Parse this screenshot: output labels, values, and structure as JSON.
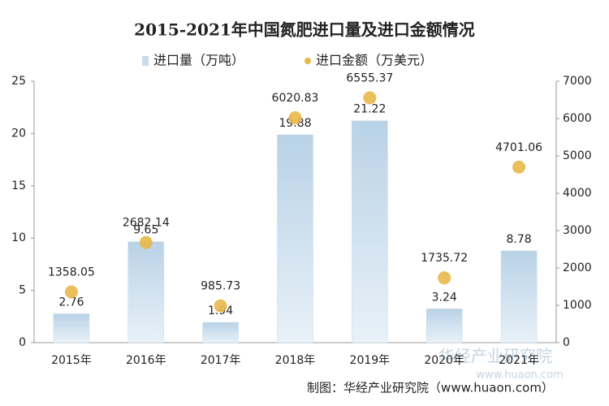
{
  "chart_data": {
    "type": "bar",
    "title": "2015-2021年中国氮肥进口量及进口金额情况",
    "categories": [
      "2015年",
      "2016年",
      "2017年",
      "2018年",
      "2019年",
      "2020年",
      "2021年"
    ],
    "series": [
      {
        "name": "进口量（万吨）",
        "color": "#c9dcec",
        "values": [
          2.76,
          9.65,
          1.94,
          19.88,
          21.22,
          3.24,
          8.78
        ]
      },
      {
        "name": "进口金额（万美元）",
        "type": "scatter",
        "axis": "y2",
        "color": "#e8b84a",
        "values": [
          1358.05,
          2682.14,
          985.73,
          6020.83,
          6555.37,
          1735.72,
          4701.06
        ]
      }
    ],
    "ylim": [
      0,
      25
    ],
    "yticks": [
      0,
      5,
      10,
      15,
      20,
      25
    ],
    "y2lim": [
      0,
      7000
    ],
    "y2ticks": [
      0,
      1000,
      2000,
      3000,
      4000,
      5000,
      6000,
      7000
    ],
    "grid": false,
    "source": "制图：华经产业研究院（www.huaon.com）",
    "watermark": [
      "华经产业研究院",
      "www.huaon.com"
    ]
  }
}
